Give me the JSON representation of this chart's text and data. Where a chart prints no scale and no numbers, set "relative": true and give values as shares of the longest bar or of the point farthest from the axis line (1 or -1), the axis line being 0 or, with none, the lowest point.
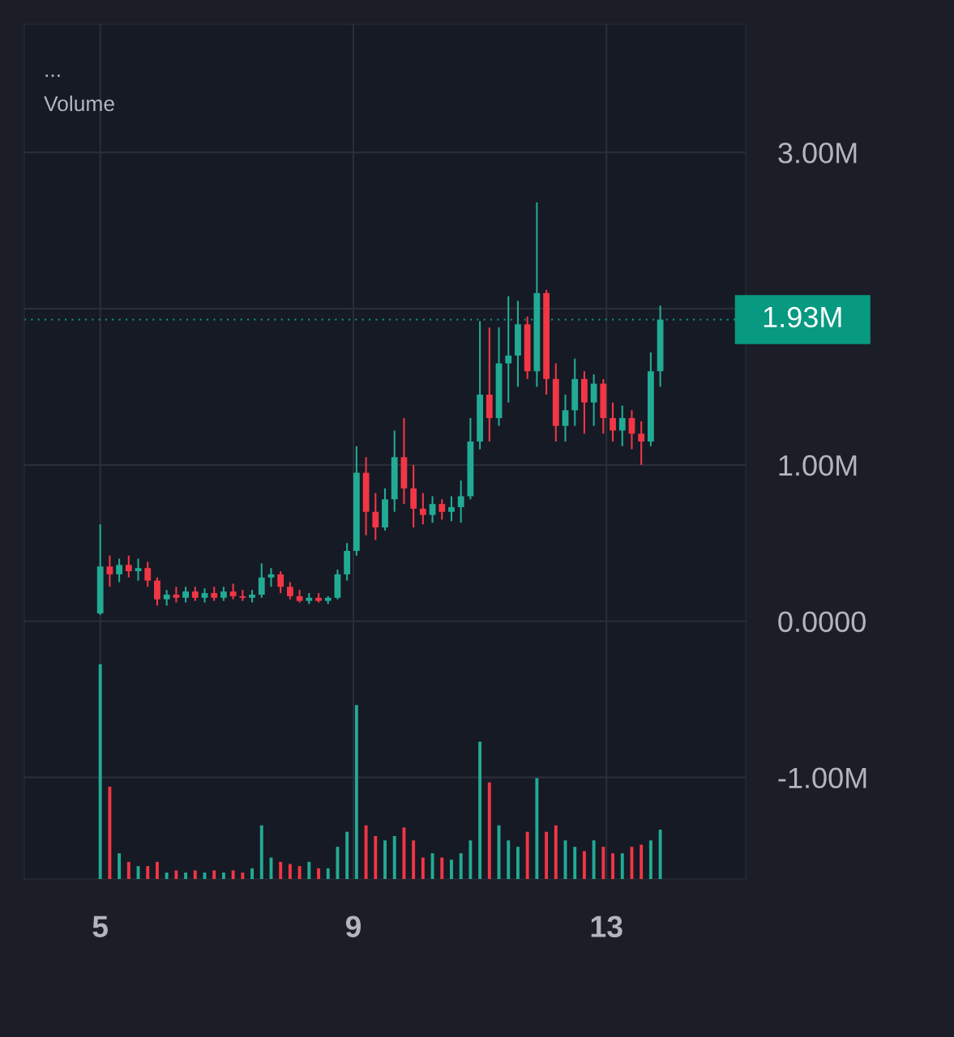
{
  "chart_data": [
    {
      "type": "candlestick",
      "x": [
        5.0,
        5.15,
        5.3,
        5.45,
        5.6,
        5.75,
        5.9,
        6.05,
        6.2,
        6.35,
        6.5,
        6.65,
        6.8,
        6.95,
        7.1,
        7.25,
        7.4,
        7.55,
        7.7,
        7.85,
        8.0,
        8.15,
        8.3,
        8.45,
        8.6,
        8.75,
        8.9,
        9.05,
        9.2,
        9.35,
        9.5,
        9.65,
        9.8,
        9.95,
        10.1,
        10.25,
        10.4,
        10.55,
        10.7,
        10.85,
        11.0,
        11.15,
        11.3,
        11.45,
        11.6,
        11.75,
        11.9,
        12.05,
        12.2,
        12.35,
        12.5,
        12.65,
        12.8,
        12.95,
        13.1,
        13.25,
        13.4,
        13.55,
        13.7,
        13.85
      ],
      "ohlc": [
        [
          50000,
          620000,
          40000,
          350000
        ],
        [
          350000,
          420000,
          220000,
          300000
        ],
        [
          300000,
          400000,
          250000,
          360000
        ],
        [
          360000,
          420000,
          280000,
          320000
        ],
        [
          320000,
          400000,
          260000,
          340000
        ],
        [
          340000,
          380000,
          220000,
          260000
        ],
        [
          260000,
          280000,
          100000,
          140000
        ],
        [
          140000,
          200000,
          100000,
          170000
        ],
        [
          170000,
          220000,
          120000,
          150000
        ],
        [
          150000,
          220000,
          120000,
          190000
        ],
        [
          190000,
          220000,
          130000,
          150000
        ],
        [
          150000,
          210000,
          120000,
          180000
        ],
        [
          180000,
          220000,
          130000,
          150000
        ],
        [
          150000,
          220000,
          130000,
          190000
        ],
        [
          190000,
          240000,
          140000,
          160000
        ],
        [
          160000,
          200000,
          130000,
          150000
        ],
        [
          150000,
          200000,
          120000,
          170000
        ],
        [
          170000,
          370000,
          150000,
          280000
        ],
        [
          280000,
          340000,
          220000,
          300000
        ],
        [
          300000,
          320000,
          180000,
          220000
        ],
        [
          220000,
          250000,
          140000,
          160000
        ],
        [
          160000,
          200000,
          120000,
          130000
        ],
        [
          130000,
          180000,
          110000,
          150000
        ],
        [
          150000,
          180000,
          120000,
          130000
        ],
        [
          130000,
          160000,
          110000,
          150000
        ],
        [
          150000,
          330000,
          140000,
          300000
        ],
        [
          300000,
          500000,
          260000,
          450000
        ],
        [
          450000,
          1120000,
          420000,
          950000
        ],
        [
          950000,
          1050000,
          550000,
          700000
        ],
        [
          700000,
          820000,
          520000,
          600000
        ],
        [
          600000,
          850000,
          580000,
          780000
        ],
        [
          780000,
          1220000,
          700000,
          1050000
        ],
        [
          1050000,
          1300000,
          750000,
          850000
        ],
        [
          850000,
          1000000,
          600000,
          720000
        ],
        [
          720000,
          820000,
          620000,
          680000
        ],
        [
          680000,
          800000,
          630000,
          750000
        ],
        [
          750000,
          780000,
          650000,
          700000
        ],
        [
          700000,
          800000,
          640000,
          730000
        ],
        [
          730000,
          900000,
          630000,
          800000
        ],
        [
          800000,
          1300000,
          780000,
          1150000
        ],
        [
          1150000,
          1920000,
          1100000,
          1450000
        ],
        [
          1450000,
          1880000,
          1150000,
          1300000
        ],
        [
          1300000,
          1880000,
          1250000,
          1650000
        ],
        [
          1650000,
          2080000,
          1400000,
          1700000
        ],
        [
          1700000,
          2050000,
          1500000,
          1900000
        ],
        [
          1900000,
          1950000,
          1550000,
          1600000
        ],
        [
          1600000,
          2680000,
          1500000,
          2100000
        ],
        [
          2100000,
          2120000,
          1450000,
          1550000
        ],
        [
          1550000,
          1650000,
          1150000,
          1250000
        ],
        [
          1250000,
          1450000,
          1150000,
          1350000
        ],
        [
          1350000,
          1680000,
          1250000,
          1550000
        ],
        [
          1550000,
          1600000,
          1200000,
          1400000
        ],
        [
          1400000,
          1580000,
          1250000,
          1520000
        ],
        [
          1520000,
          1550000,
          1200000,
          1300000
        ],
        [
          1300000,
          1400000,
          1150000,
          1220000
        ],
        [
          1220000,
          1380000,
          1120000,
          1300000
        ],
        [
          1300000,
          1350000,
          1100000,
          1200000
        ],
        [
          1200000,
          1280000,
          1000000,
          1150000
        ],
        [
          1150000,
          1720000,
          1120000,
          1600000
        ],
        [
          1600000,
          2020000,
          1500000,
          1930000
        ]
      ],
      "colors": [
        "#22ab94",
        "#f23645",
        "#22ab94",
        "#f23645",
        "#22ab94",
        "#f23645",
        "#f23645",
        "#22ab94",
        "#f23645",
        "#22ab94",
        "#f23645",
        "#22ab94",
        "#f23645",
        "#22ab94",
        "#f23645",
        "#f23645",
        "#22ab94",
        "#22ab94",
        "#22ab94",
        "#f23645",
        "#f23645",
        "#f23645",
        "#22ab94",
        "#f23645",
        "#22ab94",
        "#22ab94",
        "#22ab94",
        "#22ab94",
        "#f23645",
        "#f23645",
        "#22ab94",
        "#22ab94",
        "#f23645",
        "#f23645",
        "#f23645",
        "#22ab94",
        "#f23645",
        "#22ab94",
        "#22ab94",
        "#22ab94",
        "#22ab94",
        "#f23645",
        "#22ab94",
        "#22ab94",
        "#22ab94",
        "#f23645",
        "#22ab94",
        "#f23645",
        "#f23645",
        "#22ab94",
        "#22ab94",
        "#f23645",
        "#22ab94",
        "#f23645",
        "#f23645",
        "#22ab94",
        "#f23645",
        "#f23645",
        "#22ab94",
        "#22ab94"
      ],
      "xlim": [
        3.8,
        15.2
      ],
      "xticks": [
        5,
        9,
        13
      ],
      "ylim": [
        -1650000,
        3820000
      ],
      "yticks": [
        {
          "value": 3000000,
          "label": "3.00M"
        },
        {
          "value": 2000000,
          "label": null
        },
        {
          "value": 1000000,
          "label": "1.00M"
        },
        {
          "value": 0,
          "label": "0.0000"
        },
        {
          "value": -1000000,
          "label": "-1.00M"
        }
      ],
      "ref_lines": [
        {
          "axis": "y",
          "value": 1930000,
          "label": "1.93M",
          "color": "#089981",
          "line_style": "dotted"
        }
      ],
      "annotations": [
        "...",
        "Volume"
      ],
      "grid": true
    },
    {
      "type": "bar",
      "relative": true,
      "x": [
        5.0,
        5.15,
        5.3,
        5.45,
        5.6,
        5.75,
        5.9,
        6.05,
        6.2,
        6.35,
        6.5,
        6.65,
        6.8,
        6.95,
        7.1,
        7.25,
        7.4,
        7.55,
        7.7,
        7.85,
        8.0,
        8.15,
        8.3,
        8.45,
        8.6,
        8.75,
        8.9,
        9.05,
        9.2,
        9.35,
        9.5,
        9.65,
        9.8,
        9.95,
        10.1,
        10.25,
        10.4,
        10.55,
        10.7,
        10.85,
        11.0,
        11.15,
        11.3,
        11.45,
        11.6,
        11.75,
        11.9,
        12.05,
        12.2,
        12.35,
        12.5,
        12.65,
        12.8,
        12.95,
        13.1,
        13.25,
        13.4,
        13.55,
        13.7,
        13.85
      ],
      "xlim": [
        3.8,
        15.2
      ],
      "values": [
        1.0,
        0.43,
        0.12,
        0.08,
        0.06,
        0.06,
        0.08,
        0.03,
        0.04,
        0.03,
        0.04,
        0.03,
        0.04,
        0.03,
        0.04,
        0.03,
        0.05,
        0.25,
        0.1,
        0.08,
        0.07,
        0.06,
        0.08,
        0.05,
        0.05,
        0.15,
        0.22,
        0.81,
        0.25,
        0.2,
        0.18,
        0.2,
        0.24,
        0.18,
        0.1,
        0.12,
        0.1,
        0.09,
        0.12,
        0.18,
        0.64,
        0.45,
        0.25,
        0.18,
        0.15,
        0.22,
        0.47,
        0.22,
        0.25,
        0.18,
        0.15,
        0.13,
        0.18,
        0.15,
        0.12,
        0.12,
        0.15,
        0.16,
        0.18,
        0.23
      ],
      "colors": [
        "#22ab94",
        "#f23645",
        "#22ab94",
        "#f23645",
        "#22ab94",
        "#f23645",
        "#f23645",
        "#22ab94",
        "#f23645",
        "#22ab94",
        "#f23645",
        "#22ab94",
        "#f23645",
        "#22ab94",
        "#f23645",
        "#f23645",
        "#22ab94",
        "#22ab94",
        "#22ab94",
        "#f23645",
        "#f23645",
        "#f23645",
        "#22ab94",
        "#f23645",
        "#22ab94",
        "#22ab94",
        "#22ab94",
        "#22ab94",
        "#f23645",
        "#f23645",
        "#22ab94",
        "#22ab94",
        "#f23645",
        "#f23645",
        "#f23645",
        "#22ab94",
        "#f23645",
        "#22ab94",
        "#22ab94",
        "#22ab94",
        "#22ab94",
        "#f23645",
        "#22ab94",
        "#22ab94",
        "#22ab94",
        "#f23645",
        "#22ab94",
        "#f23645",
        "#f23645",
        "#22ab94",
        "#22ab94",
        "#f23645",
        "#22ab94",
        "#f23645",
        "#f23645",
        "#22ab94",
        "#f23645",
        "#f23645",
        "#22ab94",
        "#22ab94"
      ]
    }
  ]
}
